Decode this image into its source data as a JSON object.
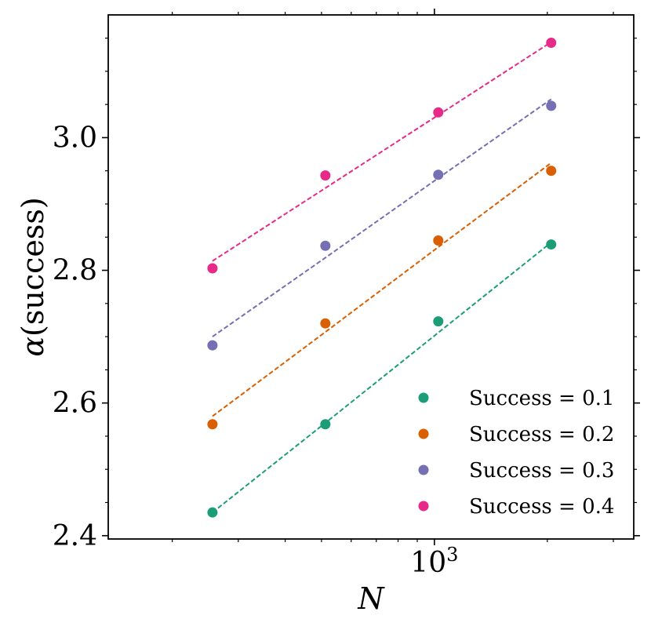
{
  "chart_data": {
    "type": "scatter",
    "x_scale": "log",
    "xlabel": "N",
    "ylabel_symbol": "α",
    "ylabel_text": "(success)",
    "xlim": [
      135,
      3400
    ],
    "ylim": [
      2.395,
      3.185
    ],
    "x": [
      256,
      512,
      1024,
      2048
    ],
    "x_major_tick": {
      "value": 1000,
      "base": "10",
      "exponent": "3"
    },
    "x_minor_ticks": [
      200,
      300,
      400,
      500,
      600,
      700,
      800,
      900,
      2000,
      3000
    ],
    "y_ticks": [
      {
        "value": 2.4,
        "label": "2.4"
      },
      {
        "value": 2.6,
        "label": "2.6"
      },
      {
        "value": 2.8,
        "label": "2.8"
      },
      {
        "value": 3.0,
        "label": "3.0"
      }
    ],
    "y_minor_ticks": [
      2.45,
      2.5,
      2.55,
      2.65,
      2.7,
      2.75,
      2.85,
      2.9,
      2.95,
      3.05,
      3.1,
      3.15
    ],
    "series": [
      {
        "name": "Success = 0.1",
        "color": "#1b9e77",
        "values": [
          2.435,
          2.568,
          2.723,
          2.839
        ],
        "fit": [
          2.435,
          2.57,
          2.706,
          2.842
        ]
      },
      {
        "name": "Success = 0.2",
        "color": "#d95f02",
        "values": [
          2.568,
          2.72,
          2.845,
          2.95
        ],
        "fit": [
          2.58,
          2.707,
          2.835,
          2.962
        ]
      },
      {
        "name": "Success = 0.3",
        "color": "#7570b3",
        "values": [
          2.687,
          2.837,
          2.944,
          3.048
        ],
        "fit": [
          2.7,
          2.819,
          2.939,
          3.058
        ]
      },
      {
        "name": "Success = 0.4",
        "color": "#e7298a",
        "values": [
          2.803,
          2.943,
          3.038,
          3.143
        ],
        "fit": [
          2.814,
          2.924,
          3.034,
          3.144
        ]
      }
    ],
    "legend_position": "bottom-right"
  }
}
